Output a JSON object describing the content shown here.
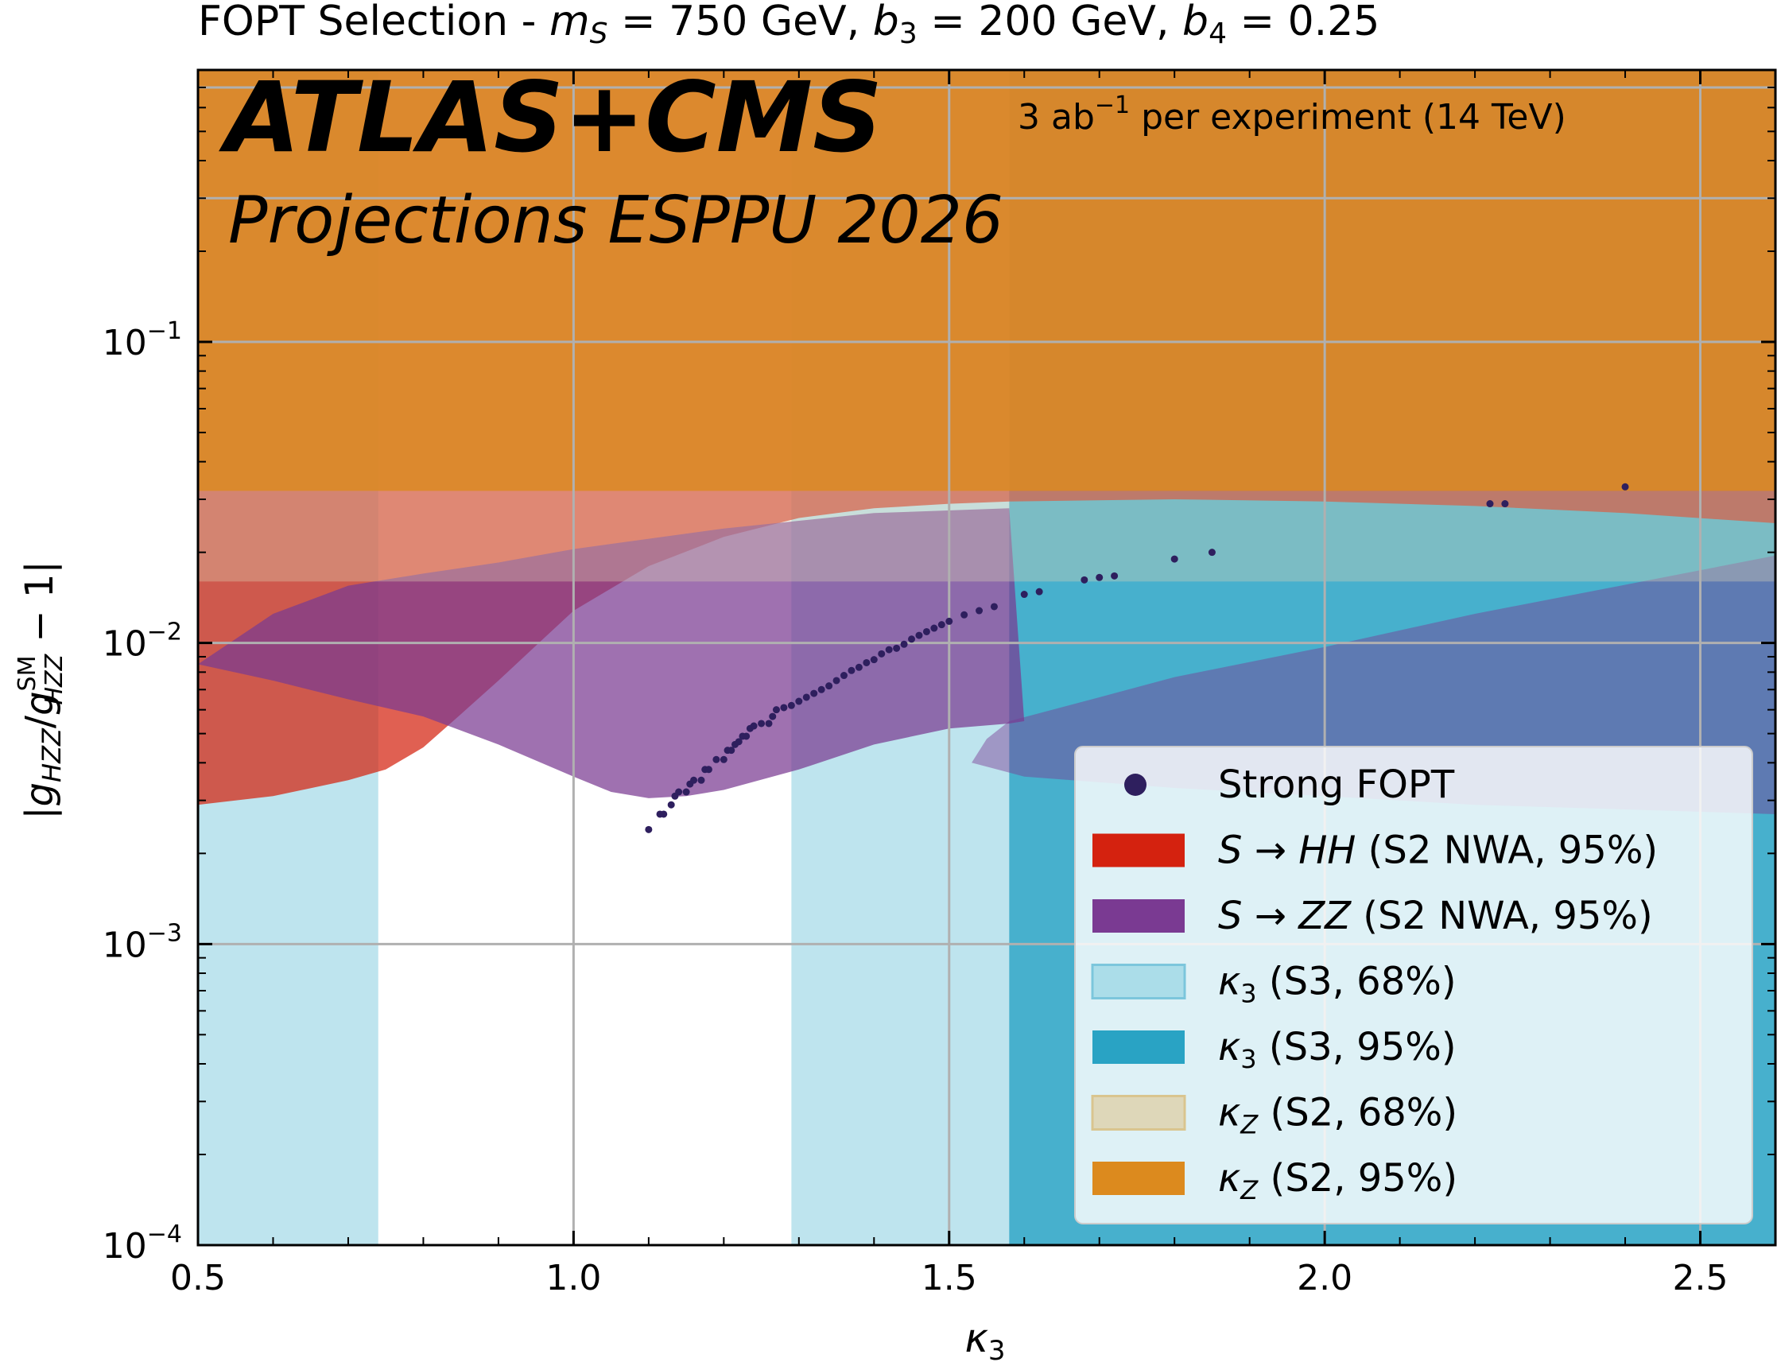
{
  "chart_data": {
    "type": "scatter",
    "title": "FOPT Selection - m_S = 750 GeV, b_3 = 200 GeV, b_4 = 0.25",
    "title_parts": {
      "prefix": "FOPT Selection - ",
      "ms_sym": "m",
      "ms_sub": "S",
      "ms_val": " = 750 GeV, ",
      "b3_sym": "b",
      "b3_sub": "3",
      "b3_val": " = 200 GeV, ",
      "b4_sym": "b",
      "b4_sub": "4",
      "b4_val": " = 0.25"
    },
    "experiment": "ATLAS+CMS",
    "projection": "Projections ESPPU 2026",
    "lumi": {
      "value": "3 ab",
      "exponent": "−1",
      "rest": "  per experiment (14 TeV)"
    },
    "xlabel": {
      "symbol": "κ",
      "sub": "3"
    },
    "ylabel": "|g_HZZ/g_HZZ^SM − 1|",
    "ylabel_parts": {
      "open": "|",
      "g": "g",
      "sub": "HZZ",
      "slash": "/",
      "g2": "g",
      "sup": "SM",
      "sub2": "HZZ",
      "rest": " − 1|"
    },
    "xlim": [
      0.5,
      2.6
    ],
    "ylim": [
      0.0001,
      0.8
    ],
    "yscale": "log",
    "grid": true,
    "x_ticks": [
      {
        "value": 0.5,
        "label": "0.5"
      },
      {
        "value": 1.0,
        "label": "1.0"
      },
      {
        "value": 1.5,
        "label": "1.5"
      },
      {
        "value": 2.0,
        "label": "2.0"
      },
      {
        "value": 2.5,
        "label": "2.5"
      }
    ],
    "y_ticks": [
      {
        "value": 0.0001,
        "base": "10",
        "exp": "−4"
      },
      {
        "value": 0.001,
        "base": "10",
        "exp": "−3"
      },
      {
        "value": 0.01,
        "base": "10",
        "exp": "−2"
      },
      {
        "value": 0.1,
        "base": "10",
        "exp": "−1"
      }
    ],
    "regions": {
      "kappa3_68": {
        "x_ranges": [
          [
            0.5,
            0.74
          ],
          [
            1.29,
            2.6
          ]
        ],
        "color": "#a8dbe8"
      },
      "kappa3_95": {
        "x_ranges": [
          [
            0.5,
            0.5
          ],
          [
            1.58,
            2.6
          ]
        ],
        "color": "#29a3c4"
      },
      "kappaZ_68": {
        "y_min": 0.016,
        "color": "#ddd5b5"
      },
      "kappaZ_95": {
        "y_min": 0.032,
        "color": "#dc8a1e"
      }
    },
    "s_to_hh_boundary": [
      [
        0.5,
        0.0029
      ],
      [
        0.6,
        0.0031
      ],
      [
        0.7,
        0.0035
      ],
      [
        0.75,
        0.0038
      ],
      [
        0.8,
        0.0045
      ],
      [
        0.85,
        0.0058
      ],
      [
        0.9,
        0.0075
      ],
      [
        0.95,
        0.0098
      ],
      [
        1.0,
        0.0128
      ],
      [
        1.1,
        0.018
      ],
      [
        1.2,
        0.0225
      ],
      [
        1.3,
        0.026
      ],
      [
        1.4,
        0.028
      ],
      [
        1.5,
        0.029
      ],
      [
        1.58,
        0.0295
      ],
      [
        1.8,
        0.03
      ],
      [
        2.0,
        0.0295
      ],
      [
        2.2,
        0.0285
      ],
      [
        2.4,
        0.027
      ],
      [
        2.6,
        0.025
      ]
    ],
    "s_to_hh_upper_cut": 0.032,
    "s_to_zz_boundary": [
      [
        0.5,
        0.0085
      ],
      [
        0.6,
        0.0075
      ],
      [
        0.7,
        0.0065
      ],
      [
        0.8,
        0.0057
      ],
      [
        0.9,
        0.0046
      ],
      [
        1.0,
        0.0036
      ],
      [
        1.05,
        0.0032
      ],
      [
        1.1,
        0.00305
      ],
      [
        1.15,
        0.0031
      ],
      [
        1.2,
        0.00325
      ],
      [
        1.3,
        0.0038
      ],
      [
        1.4,
        0.0046
      ],
      [
        1.5,
        0.0052
      ],
      [
        1.58,
        0.0054
      ],
      [
        1.6,
        0.0055
      ]
    ],
    "s_to_zz_right_lobe": [
      [
        1.55,
        0.0048
      ],
      [
        1.58,
        0.0055
      ],
      [
        1.7,
        0.0066
      ],
      [
        1.8,
        0.0077
      ],
      [
        2.0,
        0.0097
      ],
      [
        2.2,
        0.0125
      ],
      [
        2.4,
        0.0156
      ],
      [
        2.6,
        0.0195
      ],
      [
        2.6,
        0.0027
      ],
      [
        2.4,
        0.0028
      ],
      [
        2.2,
        0.0029
      ],
      [
        2.0,
        0.0031
      ],
      [
        1.8,
        0.0033
      ],
      [
        1.6,
        0.0036
      ],
      [
        1.53,
        0.004
      ]
    ],
    "s_to_zz_top": [
      [
        0.5,
        0.0085
      ],
      [
        0.6,
        0.0125
      ],
      [
        0.7,
        0.0155
      ],
      [
        0.8,
        0.017
      ],
      [
        0.9,
        0.0185
      ],
      [
        1.0,
        0.0205
      ],
      [
        1.2,
        0.024
      ],
      [
        1.4,
        0.027
      ],
      [
        1.58,
        0.028
      ]
    ],
    "series": [
      {
        "name": "Strong FOPT",
        "color": "#2e1f5e",
        "points": [
          [
            1.1,
            0.0024
          ],
          [
            1.115,
            0.0027
          ],
          [
            1.12,
            0.0027
          ],
          [
            1.13,
            0.0029
          ],
          [
            1.135,
            0.0031
          ],
          [
            1.14,
            0.0032
          ],
          [
            1.15,
            0.0032
          ],
          [
            1.155,
            0.0034
          ],
          [
            1.16,
            0.0035
          ],
          [
            1.17,
            0.0035
          ],
          [
            1.175,
            0.0038
          ],
          [
            1.18,
            0.0038
          ],
          [
            1.19,
            0.0041
          ],
          [
            1.2,
            0.0041
          ],
          [
            1.205,
            0.0044
          ],
          [
            1.21,
            0.0044
          ],
          [
            1.215,
            0.0046
          ],
          [
            1.22,
            0.0047
          ],
          [
            1.225,
            0.0049
          ],
          [
            1.23,
            0.0049
          ],
          [
            1.235,
            0.0052
          ],
          [
            1.24,
            0.0053
          ],
          [
            1.25,
            0.0054
          ],
          [
            1.26,
            0.0054
          ],
          [
            1.265,
            0.0057
          ],
          [
            1.27,
            0.006
          ],
          [
            1.28,
            0.0061
          ],
          [
            1.29,
            0.0062
          ],
          [
            1.3,
            0.0064
          ],
          [
            1.31,
            0.0066
          ],
          [
            1.32,
            0.0068
          ],
          [
            1.33,
            0.007
          ],
          [
            1.34,
            0.0072
          ],
          [
            1.35,
            0.0075
          ],
          [
            1.36,
            0.0078
          ],
          [
            1.37,
            0.0081
          ],
          [
            1.38,
            0.0083
          ],
          [
            1.39,
            0.0086
          ],
          [
            1.4,
            0.0088
          ],
          [
            1.41,
            0.0092
          ],
          [
            1.42,
            0.0095
          ],
          [
            1.43,
            0.0096
          ],
          [
            1.44,
            0.0099
          ],
          [
            1.45,
            0.0103
          ],
          [
            1.46,
            0.0106
          ],
          [
            1.47,
            0.0109
          ],
          [
            1.48,
            0.0112
          ],
          [
            1.49,
            0.0115
          ],
          [
            1.5,
            0.0118
          ],
          [
            1.52,
            0.0124
          ],
          [
            1.54,
            0.0128
          ],
          [
            1.56,
            0.0132
          ],
          [
            1.6,
            0.0145
          ],
          [
            1.62,
            0.0148
          ],
          [
            1.68,
            0.0162
          ],
          [
            1.7,
            0.0165
          ],
          [
            1.72,
            0.0167
          ],
          [
            1.8,
            0.019
          ],
          [
            1.85,
            0.02
          ],
          [
            2.22,
            0.029
          ],
          [
            2.24,
            0.029
          ],
          [
            2.4,
            0.033
          ]
        ]
      }
    ],
    "legend": {
      "position": "lower-right",
      "entries": [
        {
          "key": "fopt",
          "label_main": "Strong FOPT",
          "label_sym": "",
          "label_sub": "",
          "label_rest": "",
          "swatch": "dot",
          "color": "#2e1f5e"
        },
        {
          "key": "hh",
          "label_sym": "S",
          "label_arrow": " → ",
          "label_it": "HH",
          "label_rest": "  (S2 NWA, 95%)",
          "swatch": "box",
          "color": "#d4220f"
        },
        {
          "key": "zz",
          "label_sym": "S",
          "label_arrow": " → ",
          "label_it": "ZZ",
          "label_rest": "  (S2 NWA, 95%)",
          "swatch": "box",
          "color": "#7a3a92"
        },
        {
          "key": "k3_68",
          "label_kappa": "κ",
          "label_sub": "3",
          "label_rest": "  (S3, 68%)",
          "swatch": "box",
          "color": "#a8dbe8"
        },
        {
          "key": "k3_95",
          "label_kappa": "κ",
          "label_sub": "3",
          "label_rest": "  (S3, 95%)",
          "swatch": "box",
          "color": "#29a3c4"
        },
        {
          "key": "kz_68",
          "label_kappa": "κ",
          "label_sub": "Z",
          "label_rest": "  (S2, 68%)",
          "swatch": "box",
          "color": "#ddd5b5"
        },
        {
          "key": "kz_95",
          "label_kappa": "κ",
          "label_sub": "Z",
          "label_rest": "  (S2, 95%)",
          "swatch": "box",
          "color": "#dc8a1e"
        }
      ]
    }
  }
}
